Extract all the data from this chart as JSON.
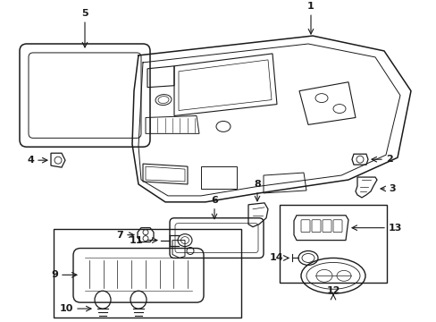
{
  "background_color": "#ffffff",
  "line_color": "#1a1a1a",
  "fig_width": 4.89,
  "fig_height": 3.6,
  "dpi": 100,
  "gray": "#888888",
  "light_gray": "#cccccc"
}
